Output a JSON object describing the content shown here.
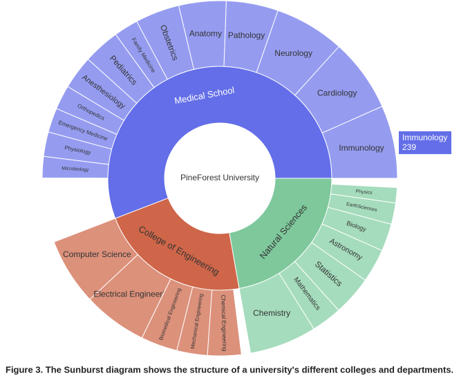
{
  "chart_data": {
    "type": "sunburst",
    "root": {
      "label": "PineForest University"
    },
    "parents": [
      {
        "label": "Medical School",
        "value": 2010,
        "color": "#636ee8",
        "child_color": "#959cf0",
        "children": [
          {
            "label": "Immunology",
            "value": 239
          },
          {
            "label": "Cardiology",
            "value": 240
          },
          {
            "label": "Neurology",
            "value": 230
          },
          {
            "label": "Pathology",
            "value": 170
          },
          {
            "label": "Anatomy",
            "value": 155
          },
          {
            "label": "Obstetrics",
            "value": 145
          },
          {
            "label": "Family Medicine",
            "value": 80
          },
          {
            "label": "Pediatrics",
            "value": 120
          },
          {
            "label": "Anesthesiology",
            "value": 110
          },
          {
            "label": "Orthopedics",
            "value": 80
          },
          {
            "label": "Emergency Medicine",
            "value": 80
          },
          {
            "label": "Physiology",
            "value": 80
          },
          {
            "label": "Microbiology",
            "value": 70
          }
        ]
      },
      {
        "label": "College of Engineering",
        "value": 790,
        "color": "#cf6649",
        "child_color": "#dc917b",
        "children": [
          {
            "label": "Computer Science",
            "value": 220
          },
          {
            "label": "Electrical Engineering",
            "value": 210
          },
          {
            "label": "Biomedical Engineering",
            "value": 120
          },
          {
            "label": "Mechanical Engineering",
            "value": 100
          },
          {
            "label": "Chemical Engineering",
            "value": 110
          }
        ]
      },
      {
        "label": "Natural Sciences",
        "value": 800,
        "color": "#7ec89c",
        "child_color": "#a5dcbd",
        "children": [
          {
            "label": "Chemistry",
            "value": 220
          },
          {
            "label": "Mathematics",
            "value": 100
          },
          {
            "label": "Statistics",
            "value": 130
          },
          {
            "label": "Astronomy",
            "value": 110
          },
          {
            "label": "Biology",
            "value": 90
          },
          {
            "label": "EarthSciences",
            "value": 70
          },
          {
            "label": "Physics",
            "value": 50
          }
        ]
      }
    ]
  },
  "caption": "Figure 3. The Sunburst diagram shows the structure of a university's different colleges and departments."
}
